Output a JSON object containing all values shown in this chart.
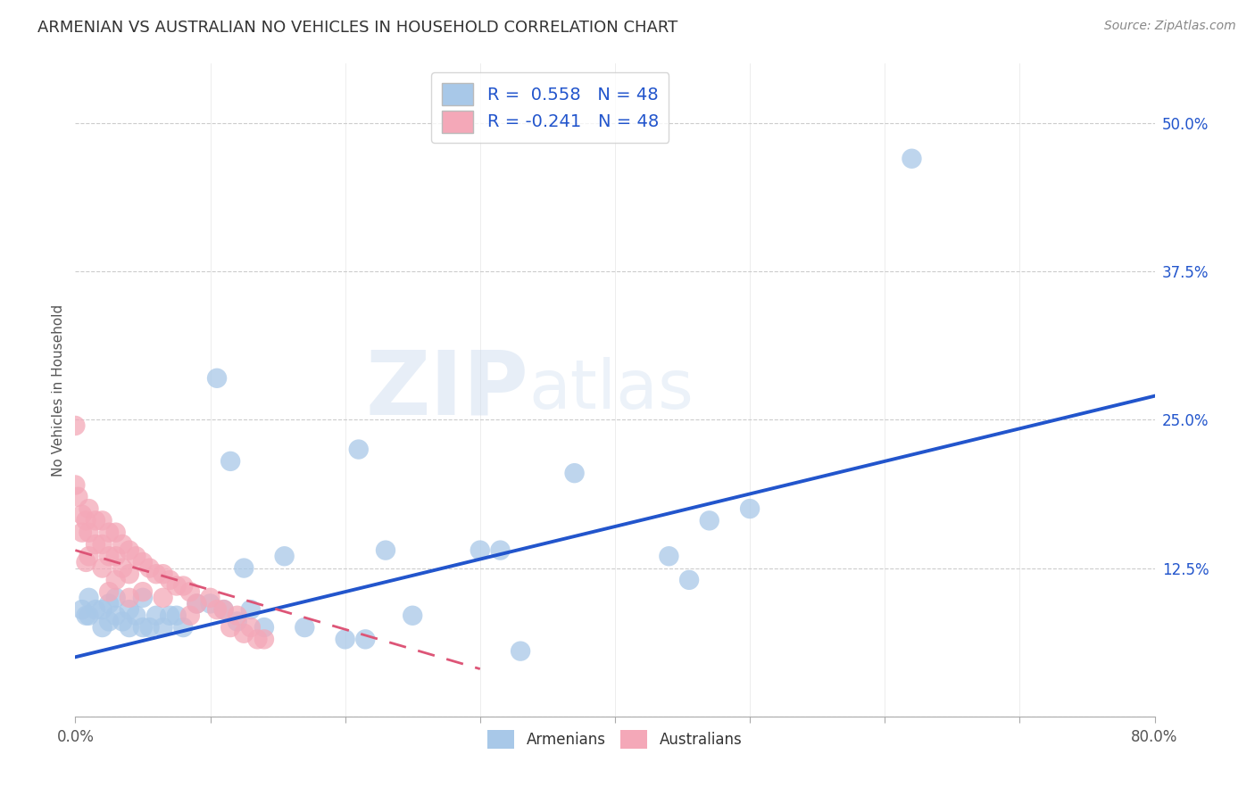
{
  "title": "ARMENIAN VS AUSTRALIAN NO VEHICLES IN HOUSEHOLD CORRELATION CHART",
  "source": "Source: ZipAtlas.com",
  "ylabel": "No Vehicles in Household",
  "legend_label1": "Armenians",
  "legend_label2": "Australians",
  "r1": 0.558,
  "r2": -0.241,
  "n1": 48,
  "n2": 48,
  "xlim": [
    0.0,
    0.8
  ],
  "ylim": [
    0.0,
    0.55
  ],
  "xticks_labeled": [
    0.0,
    0.8
  ],
  "xticks_minor": [
    0.1,
    0.2,
    0.3,
    0.4,
    0.5,
    0.6,
    0.7
  ],
  "yticks_right": [
    0.0,
    0.125,
    0.25,
    0.375,
    0.5
  ],
  "color_armenian": "#a8c8e8",
  "color_australian": "#f4a8b8",
  "color_line1": "#2255cc",
  "color_line2": "#dd5577",
  "background_color": "#ffffff",
  "grid_color": "#cccccc",
  "watermark_zip": "ZIP",
  "watermark_atlas": "atlas",
  "armenian_x": [
    0.005,
    0.008,
    0.01,
    0.01,
    0.015,
    0.02,
    0.02,
    0.025,
    0.025,
    0.03,
    0.03,
    0.035,
    0.04,
    0.04,
    0.045,
    0.05,
    0.05,
    0.055,
    0.06,
    0.065,
    0.07,
    0.075,
    0.08,
    0.09,
    0.1,
    0.105,
    0.11,
    0.115,
    0.12,
    0.125,
    0.13,
    0.14,
    0.155,
    0.17,
    0.2,
    0.21,
    0.215,
    0.23,
    0.25,
    0.3,
    0.315,
    0.33,
    0.37,
    0.44,
    0.455,
    0.47,
    0.5,
    0.62
  ],
  "armenian_y": [
    0.09,
    0.085,
    0.085,
    0.1,
    0.09,
    0.075,
    0.09,
    0.08,
    0.095,
    0.085,
    0.1,
    0.08,
    0.075,
    0.09,
    0.085,
    0.075,
    0.1,
    0.075,
    0.085,
    0.075,
    0.085,
    0.085,
    0.075,
    0.095,
    0.095,
    0.285,
    0.09,
    0.215,
    0.08,
    0.125,
    0.09,
    0.075,
    0.135,
    0.075,
    0.065,
    0.225,
    0.065,
    0.14,
    0.085,
    0.14,
    0.14,
    0.055,
    0.205,
    0.135,
    0.115,
    0.165,
    0.175,
    0.47
  ],
  "australian_x": [
    0.0,
    0.0,
    0.002,
    0.005,
    0.005,
    0.008,
    0.008,
    0.01,
    0.01,
    0.01,
    0.015,
    0.015,
    0.02,
    0.02,
    0.02,
    0.025,
    0.025,
    0.025,
    0.03,
    0.03,
    0.03,
    0.035,
    0.035,
    0.04,
    0.04,
    0.04,
    0.045,
    0.05,
    0.05,
    0.055,
    0.06,
    0.065,
    0.065,
    0.07,
    0.075,
    0.08,
    0.085,
    0.085,
    0.09,
    0.1,
    0.105,
    0.11,
    0.115,
    0.12,
    0.125,
    0.13,
    0.135,
    0.14
  ],
  "australian_y": [
    0.245,
    0.195,
    0.185,
    0.17,
    0.155,
    0.165,
    0.13,
    0.175,
    0.155,
    0.135,
    0.165,
    0.145,
    0.165,
    0.145,
    0.125,
    0.155,
    0.135,
    0.105,
    0.155,
    0.135,
    0.115,
    0.145,
    0.125,
    0.14,
    0.12,
    0.1,
    0.135,
    0.13,
    0.105,
    0.125,
    0.12,
    0.12,
    0.1,
    0.115,
    0.11,
    0.11,
    0.105,
    0.085,
    0.095,
    0.1,
    0.09,
    0.09,
    0.075,
    0.085,
    0.07,
    0.075,
    0.065,
    0.065
  ],
  "line1_x0": 0.0,
  "line1_y0": 0.05,
  "line1_x1": 0.8,
  "line1_y1": 0.27,
  "line2_x0": 0.0,
  "line2_y0": 0.14,
  "line2_x1": 0.3,
  "line2_y1": 0.04
}
